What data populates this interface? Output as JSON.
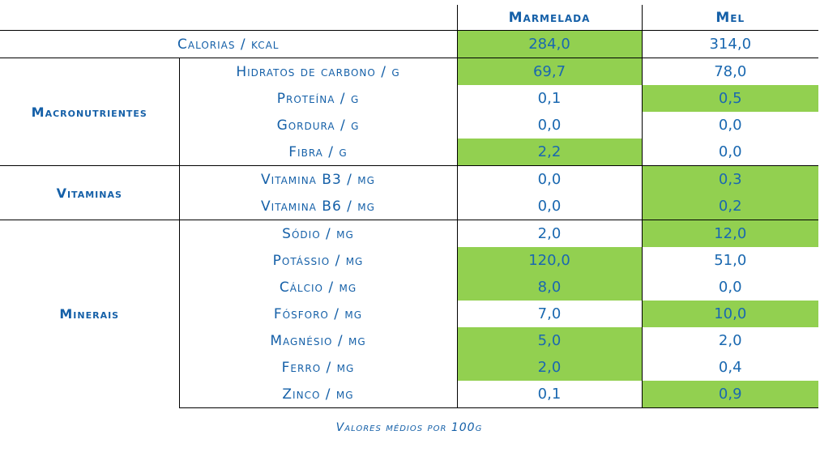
{
  "headers": {
    "col1": "Marmelada",
    "col2": "Mel"
  },
  "highlight_color": "#92d050",
  "text_color": "#1560a8",
  "calorias": {
    "label": "Calorias / kcal",
    "marmelada": "284,0",
    "mel": "314,0"
  },
  "groups": {
    "macro": "Macronutrientes",
    "vit": "Vitaminas",
    "min": "Minerais"
  },
  "rows": [
    {
      "label": "Hidratos de carbono / g",
      "marmelada": "69,7",
      "mel": "78,0"
    },
    {
      "label": "Proteína / g",
      "marmelada": "0,1",
      "mel": "0,5"
    },
    {
      "label": "Gordura / g",
      "marmelada": "0,0",
      "mel": "0,0"
    },
    {
      "label": "Fibra / g",
      "marmelada": "2,2",
      "mel": "0,0"
    },
    {
      "label": "Vitamina B3 / mg",
      "marmelada": "0,0",
      "mel": "0,3"
    },
    {
      "label": "Vitamina B6 / mg",
      "marmelada": "0,0",
      "mel": "0,2"
    },
    {
      "label": "Sódio / mg",
      "marmelada": "2,0",
      "mel": "12,0"
    },
    {
      "label": "Potássio / mg",
      "marmelada": "120,0",
      "mel": "51,0"
    },
    {
      "label": "Cálcio / mg",
      "marmelada": "8,0",
      "mel": "0,0"
    },
    {
      "label": "Fósforo / mg",
      "marmelada": "7,0",
      "mel": "10,0"
    },
    {
      "label": "Magnésio / mg",
      "marmelada": "5,0",
      "mel": "2,0"
    },
    {
      "label": "Ferro / mg",
      "marmelada": "2,0",
      "mel": "0,4"
    },
    {
      "label": "Zinco / mg",
      "marmelada": "0,1",
      "mel": "0,9"
    }
  ],
  "caption": "Valores médios por 100g"
}
